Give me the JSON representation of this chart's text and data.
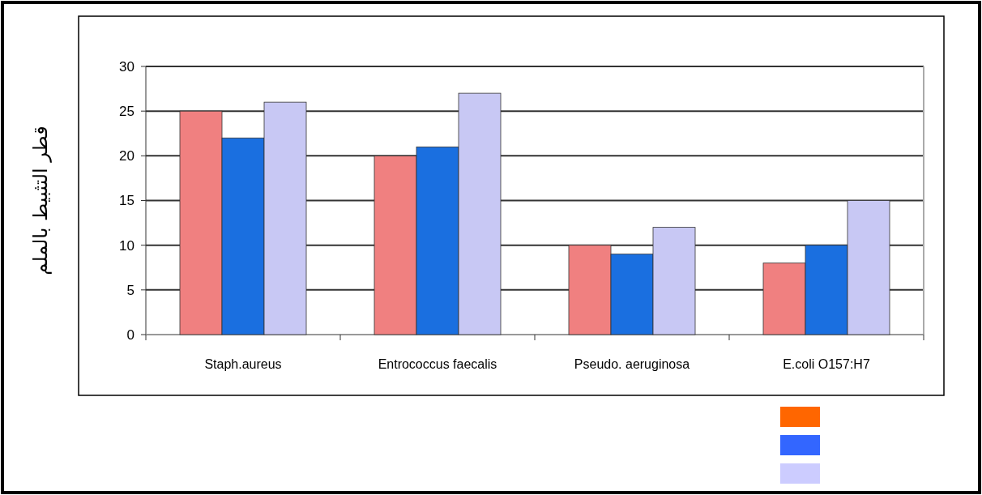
{
  "chart_data": {
    "type": "bar",
    "ylabel": "قطر التثبيط بالملم",
    "categories": [
      "Staph.aureus",
      "Entrococcus faecalis",
      "Pseudo. aeruginosa",
      "E.coli O157:H7"
    ],
    "series": [
      {
        "color": "#f08080",
        "values": [
          25,
          20,
          10,
          8
        ]
      },
      {
        "color": "#1a6fe0",
        "values": [
          22,
          21,
          9,
          10
        ]
      },
      {
        "color": "#c8c8f4",
        "values": [
          26,
          27,
          12,
          15
        ]
      }
    ],
    "ylim": [
      0,
      30
    ],
    "yticks": [
      0,
      5,
      10,
      15,
      20,
      25,
      30
    ],
    "grid": "y"
  }
}
